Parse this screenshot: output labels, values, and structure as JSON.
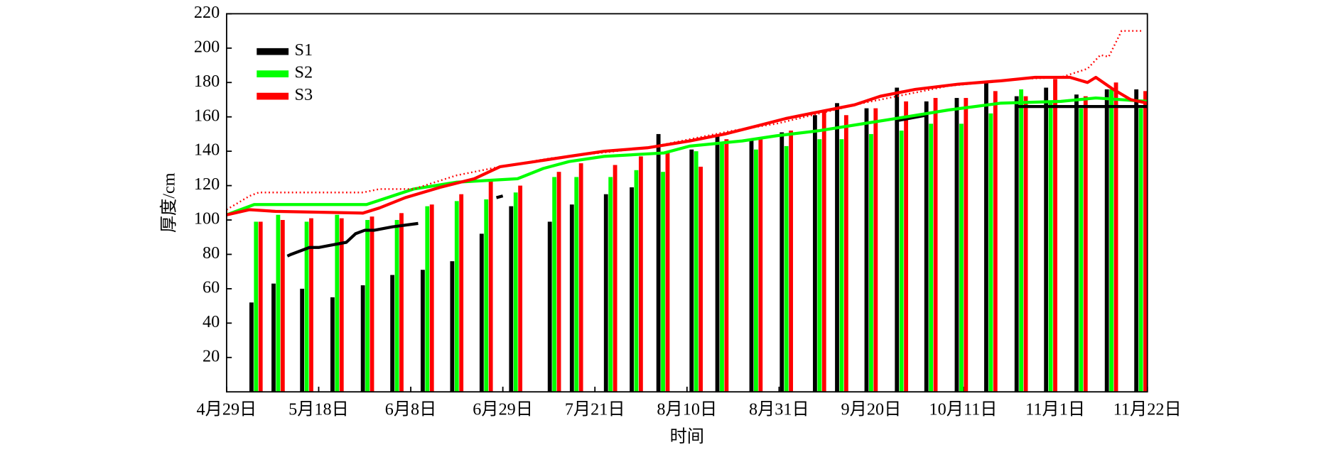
{
  "chart_data": {
    "type": "bar-line",
    "x_label": "时间",
    "y_label": "厚度/cm",
    "xlim": [
      0,
      10
    ],
    "xticks": [
      {
        "value": 0,
        "label": "4月29日"
      },
      {
        "value": 1,
        "label": "5月18日"
      },
      {
        "value": 2,
        "label": "6月8日"
      },
      {
        "value": 3,
        "label": "6月29日"
      },
      {
        "value": 4,
        "label": "7月21日"
      },
      {
        "value": 5,
        "label": "8月10日"
      },
      {
        "value": 6,
        "label": "8月31日"
      },
      {
        "value": 7,
        "label": "9月20日"
      },
      {
        "value": 8,
        "label": "10月11日"
      },
      {
        "value": 9,
        "label": "11月1日"
      },
      {
        "value": 10,
        "label": "11月22日"
      }
    ],
    "ylim": [
      0,
      220
    ],
    "yticks": [
      20,
      40,
      60,
      80,
      100,
      120,
      140,
      160,
      180,
      200,
      220
    ],
    "legend": "upper-left",
    "series": [
      {
        "name": "S1",
        "color": "#000000",
        "bars": {
          "x": [
            0.27,
            0.51,
            0.82,
            1.15,
            1.48,
            1.8,
            2.13,
            2.45,
            2.77,
            3.09,
            3.51,
            3.75,
            4.12,
            4.4,
            4.69,
            5.05,
            5.33,
            5.7,
            6.03,
            6.39,
            6.63,
            6.95,
            7.28,
            7.6,
            7.93,
            8.25,
            8.58,
            8.9,
            9.23,
            9.56,
            9.88
          ],
          "values": [
            52,
            63,
            60,
            55,
            62,
            68,
            71,
            76,
            92,
            108,
            99,
            109,
            115,
            119,
            150,
            141,
            149,
            147,
            151,
            161,
            168,
            165,
            177,
            169,
            171,
            180,
            172,
            177,
            173,
            176,
            176
          ]
        },
        "line": {
          "x": [
            0.66,
            0.7,
            0.8,
            0.9,
            1.0,
            1.1,
            1.3,
            1.4,
            1.5,
            1.6,
            1.8,
            2.08,
            null,
            2.93,
            3.0,
            null,
            7.3,
            7.6,
            null,
            8.6,
            10
          ],
          "values": [
            79,
            80,
            82,
            84,
            84,
            85,
            87,
            92,
            94,
            94,
            96,
            98,
            null,
            113,
            114,
            null,
            158,
            161,
            null,
            166,
            166
          ]
        }
      },
      {
        "name": "S2",
        "color": "#00ff00",
        "bars": {
          "x": [
            0.27,
            0.51,
            0.82,
            1.15,
            1.48,
            1.8,
            2.13,
            2.45,
            2.77,
            3.09,
            3.51,
            3.75,
            4.12,
            4.4,
            4.69,
            5.05,
            5.33,
            5.7,
            6.03,
            6.39,
            6.63,
            6.95,
            7.28,
            7.6,
            7.93,
            8.25,
            8.58,
            8.9,
            9.23,
            9.56,
            9.88
          ],
          "values": [
            99,
            103,
            99,
            103,
            100,
            100,
            108,
            111,
            112,
            116,
            125,
            125,
            125,
            129,
            128,
            140,
            145,
            141,
            143,
            147,
            147,
            150,
            152,
            156,
            156,
            162,
            176,
            168,
            165,
            176,
            165
          ]
        },
        "line": {
          "x": [
            0,
            0.3,
            1.52,
            2.03,
            2.5,
            3.16,
            3.44,
            3.72,
            4.1,
            4.75,
            5.03,
            5.6,
            5.97,
            6.44,
            6.91,
            7.38,
            7.84,
            8.41,
            9.06,
            9.44,
            10
          ],
          "values": [
            103,
            109,
            109,
            118,
            122,
            124,
            130,
            134,
            137,
            139,
            143,
            146,
            149,
            152,
            156,
            160,
            164,
            168,
            169,
            171,
            169
          ]
        }
      },
      {
        "name": "S3",
        "color": "#ff0000",
        "bars": {
          "x": [
            0.27,
            0.51,
            0.82,
            1.15,
            1.48,
            1.8,
            2.13,
            2.45,
            2.77,
            3.09,
            3.51,
            3.75,
            4.12,
            4.4,
            4.69,
            5.05,
            5.33,
            5.7,
            6.03,
            6.39,
            6.63,
            6.95,
            7.28,
            7.6,
            7.93,
            8.25,
            8.58,
            8.9,
            9.23,
            9.56,
            9.88
          ],
          "values": [
            99,
            100,
            101,
            101,
            102,
            104,
            109,
            115,
            123,
            120,
            128,
            133,
            132,
            137,
            140,
            131,
            147,
            147,
            152,
            164,
            161,
            165,
            169,
            171,
            171,
            175,
            172,
            182,
            172,
            180,
            175
          ]
        },
        "line": {
          "x": [
            0,
            0.25,
            0.53,
            1.48,
            1.66,
            1.94,
            2.32,
            2.69,
            2.97,
            3.35,
            3.72,
            4.1,
            4.57,
            5.03,
            5.41,
            5.78,
            6.07,
            6.44,
            6.82,
            7.1,
            7.48,
            7.94,
            8.41,
            8.78,
            9.16,
            9.35,
            9.44,
            9.63,
            9.82,
            10
          ],
          "values": [
            103,
            106,
            105,
            104,
            107,
            113,
            119,
            124,
            131,
            134,
            137,
            140,
            142,
            146,
            150,
            155,
            159,
            163,
            167,
            172,
            176,
            179,
            181,
            183,
            183,
            180,
            183,
            176,
            170,
            168
          ]
        },
        "dotted": {
          "x": [
            0,
            0.25,
            0.35,
            1.48,
            1.66,
            2.03,
            2.5,
            2.97,
            3.53,
            4.57,
            5.03,
            5.5,
            5.97,
            6.91,
            7.84,
            8.6,
            9.06,
            9.35,
            9.49,
            9.58,
            9.72,
            9.96
          ],
          "values": [
            106,
            114,
            116,
            116,
            118,
            118,
            126,
            131,
            136,
            142,
            147,
            152,
            156,
            168,
            178,
            182,
            183,
            188,
            196,
            195,
            210,
            210
          ]
        }
      }
    ]
  }
}
